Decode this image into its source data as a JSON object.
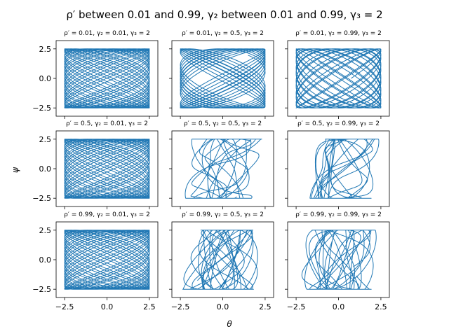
{
  "figure": {
    "suptitle": "ρ′ between 0.01 and 0.99, γ₂ between 0.01 and 0.99, γ₃ = 2",
    "xlabel": "θ",
    "ylabel": "ψ",
    "line_color": "#1f77b4"
  },
  "chart_data": {
    "type": "line",
    "layout": "3x3 grid of phase-space plots (ψ vs θ); shared x and y axes",
    "xlim": [
      -3.0,
      3.0
    ],
    "ylim": [
      -3.2,
      3.2
    ],
    "xticks": [
      -2.5,
      0.0,
      2.5
    ],
    "yticks": [
      -2.5,
      0.0,
      2.5
    ],
    "xtick_labels": [
      "−2.5",
      "0.0",
      "2.5"
    ],
    "ytick_labels": [
      "−2.5",
      "0.0",
      "2.5"
    ],
    "grid": false,
    "panels": [
      {
        "title": "ρ′ = 0.01, γ₂ = 0.01, γ₃ = 2",
        "rho": 0.01,
        "gamma2": 0.01,
        "gamma3": 2,
        "pattern": "lissajous",
        "fx": 3.1,
        "fy": 2.0,
        "amp_x": 2.5,
        "amp_y": 2.5
      },
      {
        "title": "ρ′ = 0.01, γ₂ = 0.5, γ₃ = 2",
        "rho": 0.01,
        "gamma2": 0.5,
        "gamma3": 2,
        "pattern": "lissajous",
        "fx": 2.55,
        "fy": 1.9,
        "amp_x": 2.5,
        "amp_y": 2.5
      },
      {
        "title": "ρ′ = 0.01, γ₂ = 0.99, γ₃ = 2",
        "rho": 0.01,
        "gamma2": 0.99,
        "gamma3": 2,
        "pattern": "lissajous",
        "fx": 2.15,
        "fy": 2.0,
        "amp_x": 2.5,
        "amp_y": 2.5
      },
      {
        "title": "ρ′ = 0.5, γ₂ = 0.01, γ₃ = 2",
        "rho": 0.5,
        "gamma2": 0.01,
        "gamma3": 2,
        "pattern": "lissajous",
        "fx": 3.1,
        "fy": 2.0,
        "amp_x": 2.5,
        "amp_y": 2.5
      },
      {
        "title": "ρ′ = 0.5, γ₂ = 0.5, γ₃ = 2",
        "rho": 0.5,
        "gamma2": 0.5,
        "gamma3": 2,
        "pattern": "chaotic",
        "fx": 1.7,
        "fy": 1.05,
        "amp_x": 2.3,
        "amp_y": 2.5
      },
      {
        "title": "ρ′ = 0.5, γ₂ = 0.99, γ₃ = 2",
        "rho": 0.5,
        "gamma2": 0.99,
        "gamma3": 2,
        "pattern": "chaotic",
        "fx": 1.45,
        "fy": 1.15,
        "amp_x": 2.4,
        "amp_y": 2.5
      },
      {
        "title": "ρ′ = 0.99, γ₂ = 0.01, γ₃ = 2",
        "rho": 0.99,
        "gamma2": 0.01,
        "gamma3": 2,
        "pattern": "lissajous",
        "fx": 3.1,
        "fy": 2.0,
        "amp_x": 2.5,
        "amp_y": 2.5
      },
      {
        "title": "ρ′ = 0.99, γ₂ = 0.5, γ₃ = 2",
        "rho": 0.99,
        "gamma2": 0.5,
        "gamma3": 2,
        "pattern": "chaotic",
        "fx": 2.1,
        "fy": 1.7,
        "amp_x": 2.4,
        "amp_y": 2.5
      },
      {
        "title": "ρ′ = 0.99, γ₂ = 0.99, γ₃ = 2",
        "rho": 0.99,
        "gamma2": 0.99,
        "gamma3": 2,
        "pattern": "chaotic",
        "fx": 1.75,
        "fy": 1.6,
        "amp_x": 2.4,
        "amp_y": 2.5
      }
    ]
  }
}
